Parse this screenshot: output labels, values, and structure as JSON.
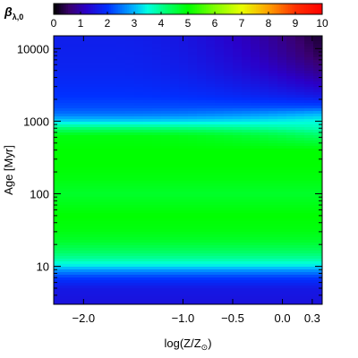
{
  "chart_data": {
    "type": "heatmap",
    "colorbar": {
      "label": "β",
      "label_subscript": "λ,0",
      "range": [
        0,
        10
      ],
      "ticks": [
        0,
        1,
        2,
        3,
        4,
        5,
        6,
        7,
        8,
        9,
        10
      ],
      "colormap": [
        {
          "v": 0.0,
          "color": "#000000"
        },
        {
          "v": 0.6,
          "color": "#3a0070"
        },
        {
          "v": 1.2,
          "color": "#2a00c8"
        },
        {
          "v": 2.0,
          "color": "#0030ff"
        },
        {
          "v": 3.0,
          "color": "#00b4ff"
        },
        {
          "v": 3.5,
          "color": "#00ffe0"
        },
        {
          "v": 4.2,
          "color": "#00ff70"
        },
        {
          "v": 5.0,
          "color": "#00ff00"
        },
        {
          "v": 6.0,
          "color": "#80ff00"
        },
        {
          "v": 7.0,
          "color": "#e8ff00"
        },
        {
          "v": 8.0,
          "color": "#ffa000"
        },
        {
          "v": 9.0,
          "color": "#ff3000"
        },
        {
          "v": 10.0,
          "color": "#ff0000"
        }
      ]
    },
    "x_axis": {
      "label": "log(Z/Z",
      "label_subscript": "⊙",
      "label_close": ")",
      "range": [
        -2.3,
        0.4
      ],
      "ticks": [
        -2.0,
        -1.0,
        -0.5,
        0.0,
        0.3
      ],
      "tick_labels": [
        "−2.0",
        "−1.0",
        "−0.5",
        "0.0",
        "0.3"
      ]
    },
    "y_axis": {
      "label": "Age [Myr]",
      "scale": "log",
      "range": [
        3,
        15000
      ],
      "ticks": [
        10,
        100,
        1000,
        10000
      ],
      "tick_labels": [
        "10",
        "100",
        "1000",
        "10000"
      ]
    },
    "profile": {
      "log_age": [
        0.48,
        0.7,
        0.85,
        0.95,
        1.0,
        1.1,
        1.2,
        1.35,
        1.5,
        1.7,
        1.9,
        2.0,
        2.2,
        2.4,
        2.6,
        2.8,
        2.9,
        3.0,
        3.1,
        3.2,
        3.35,
        3.5,
        3.7,
        3.9,
        4.18
      ],
      "beta_metal_poor": [
        1.5,
        1.6,
        2.1,
        2.8,
        3.3,
        3.9,
        4.3,
        4.7,
        4.9,
        5.0,
        4.8,
        4.7,
        4.9,
        5.0,
        5.0,
        4.9,
        4.2,
        3.2,
        2.5,
        2.2,
        2.0,
        1.9,
        1.8,
        1.75,
        1.7
      ],
      "beta_metal_rich": [
        1.5,
        1.6,
        2.1,
        2.8,
        3.3,
        3.9,
        4.3,
        4.7,
        4.9,
        5.0,
        4.8,
        4.7,
        4.9,
        5.0,
        5.0,
        4.3,
        3.8,
        3.5,
        3.0,
        2.2,
        1.6,
        1.2,
        0.8,
        0.5,
        0.3
      ]
    }
  }
}
